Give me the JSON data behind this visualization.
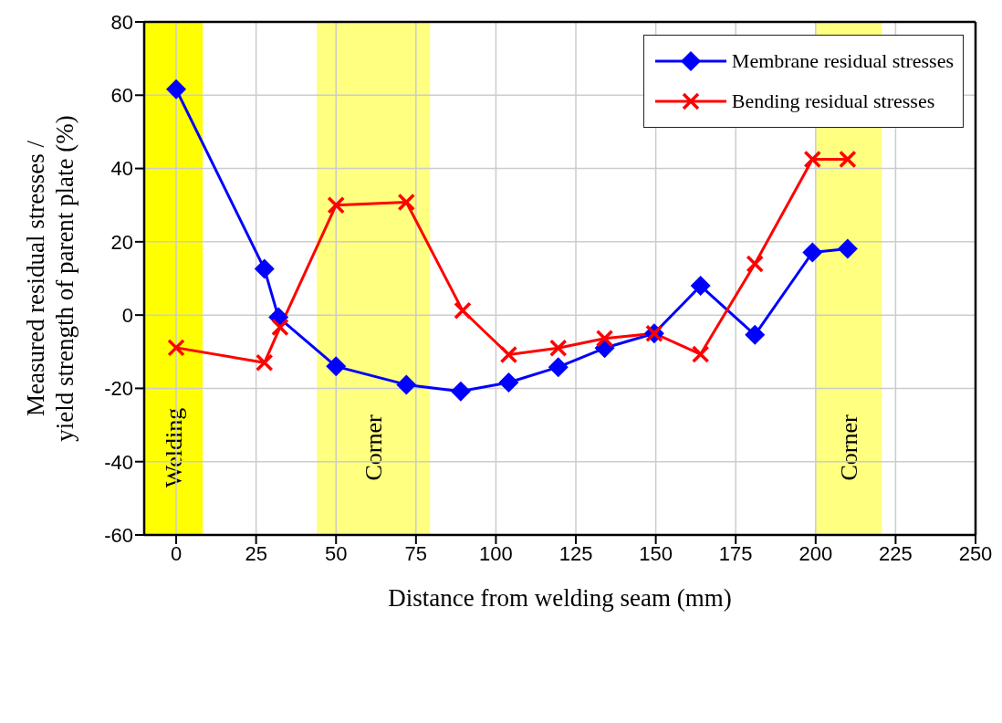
{
  "chart_data": {
    "type": "line",
    "xlabel": "Distance from welding seam (mm)",
    "ylabel": "Measured residual stresses / yield strength of parent plate (%)",
    "xlim": [
      -10,
      250
    ],
    "xticks": [
      0,
      25,
      50,
      75,
      100,
      125,
      150,
      175,
      200,
      225,
      250
    ],
    "ylim": [
      -60,
      80
    ],
    "yticks": [
      -60,
      -40,
      -20,
      0,
      20,
      40,
      60,
      80
    ],
    "grid": true,
    "legend": "top right",
    "line_style": "solid",
    "series": [
      {
        "name": "Membrane residual stresses",
        "color": "#0000ff",
        "marker": "diamond",
        "x": [
          0,
          27.6,
          32,
          50,
          72,
          89,
          104,
          119.5,
          134,
          149.5,
          164,
          181,
          199,
          210
        ],
        "values": [
          61.6,
          12.6,
          -0.6,
          -14,
          -19,
          -20.8,
          -18.4,
          -14.2,
          -9,
          -5,
          8,
          -5.4,
          17.1,
          18.1
        ]
      },
      {
        "name": "Bending residual stresses",
        "color": "#ff0000",
        "marker": "cross",
        "x": [
          0,
          27.6,
          32.5,
          50,
          72,
          89.6,
          104,
          119.5,
          134,
          149.5,
          164,
          181,
          199,
          210
        ],
        "values": [
          -8.9,
          -13,
          -3.3,
          30,
          30.8,
          1.2,
          -10.8,
          -9,
          -6.4,
          -5,
          -10.7,
          14,
          42.5,
          42.5
        ]
      }
    ],
    "bands": [
      {
        "axis": "x",
        "from": -10,
        "to": 8.3,
        "label": "Welding",
        "color": "#ffff00"
      },
      {
        "axis": "x",
        "from": 44,
        "to": 79.4,
        "label": "Corner",
        "color": "#ffff80"
      },
      {
        "axis": "x",
        "from": 200,
        "to": 220.7,
        "label": "Corner",
        "color": "#ffff80"
      }
    ]
  }
}
